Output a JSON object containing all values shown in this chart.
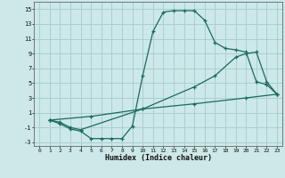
{
  "xlabel": "Humidex (Indice chaleur)",
  "bg_color": "#cce8e8",
  "grid_color": "#aacfcf",
  "line_color": "#1a6b5a",
  "xlim": [
    -0.5,
    23.5
  ],
  "ylim": [
    -3.5,
    16
  ],
  "xticks": [
    0,
    1,
    2,
    3,
    4,
    5,
    6,
    7,
    8,
    9,
    10,
    11,
    12,
    13,
    14,
    15,
    16,
    17,
    18,
    19,
    20,
    21,
    22,
    23
  ],
  "yticks": [
    -3,
    -1,
    1,
    3,
    5,
    7,
    9,
    11,
    13,
    15
  ],
  "line1_x": [
    1,
    2,
    3,
    4,
    5,
    6,
    7,
    8,
    9,
    10,
    11,
    12,
    13,
    14,
    15,
    16,
    17,
    18,
    19,
    20,
    21,
    22,
    23
  ],
  "line1_y": [
    0,
    -0.5,
    -1.2,
    -1.5,
    -2.5,
    -2.5,
    -2.5,
    -2.5,
    -0.8,
    6.0,
    12.0,
    14.6,
    14.8,
    14.8,
    14.8,
    13.5,
    10.5,
    9.7,
    9.5,
    9.2,
    5.2,
    4.8,
    3.5
  ],
  "line2_x": [
    1,
    2,
    3,
    4,
    10,
    15,
    17,
    19,
    20,
    21,
    22,
    23
  ],
  "line2_y": [
    0,
    -0.3,
    -1.0,
    -1.3,
    1.5,
    4.5,
    6.0,
    8.5,
    9.0,
    9.2,
    5.2,
    3.5
  ],
  "line3_x": [
    1,
    5,
    10,
    15,
    20,
    23
  ],
  "line3_y": [
    0,
    0.5,
    1.5,
    2.2,
    3.0,
    3.5
  ]
}
